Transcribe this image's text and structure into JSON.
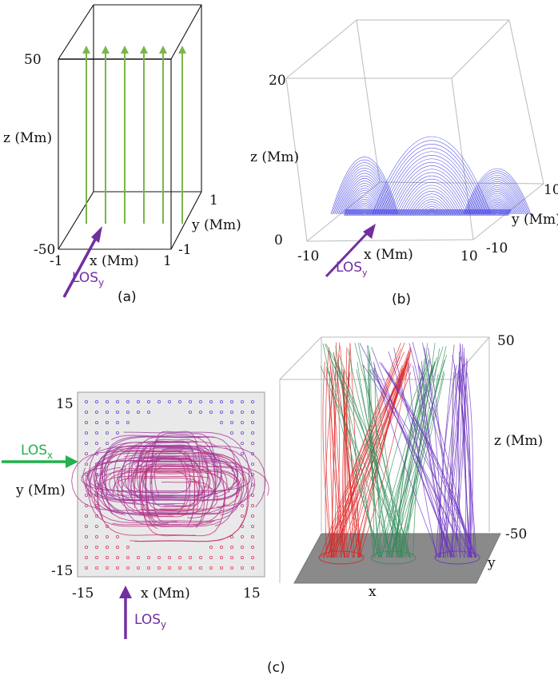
{
  "panel_a": {
    "z_top": "50",
    "z_bottom": "-50",
    "z_label": "z (Mm)",
    "x_left": "-1",
    "x_right": "1",
    "x_label": "x (Mm)",
    "y_back": "1",
    "y_front": "-1",
    "y_label": "y (Mm)",
    "los": "LOS",
    "los_sub": "y",
    "caption": "(a)",
    "colors": {
      "field": "#7ab648",
      "los": "#7030a0"
    }
  },
  "panel_b": {
    "z_top": "20",
    "z_bottom": "0",
    "z_label": "z (Mm)",
    "x_left": "-10",
    "x_right": "10",
    "x_label": "x (Mm)",
    "y_back": "10",
    "y_front": "-10",
    "y_label": "y (Mm)",
    "los": "LOS",
    "los_sub": "y",
    "caption": "(b)",
    "colors": {
      "field": "#3a3ae0",
      "los": "#7030a0"
    }
  },
  "panel_c": {
    "left": {
      "y_top": "15",
      "y_bottom": "-15",
      "y_label": "y (Mm)",
      "x_left": "-15",
      "x_right": "15",
      "x_label": "x (Mm)",
      "los_x": "LOS",
      "los_x_sub": "x",
      "los_y": "LOS",
      "los_y_sub": "y"
    },
    "right": {
      "z_top": "50",
      "z_bottom": "-50",
      "z_label": "z (Mm)",
      "x_label": "x",
      "y_label": "y"
    },
    "caption": "(c)",
    "colors": {
      "red": "#e02020",
      "green": "#2e8b57",
      "purple": "#6a2fbf",
      "los_x": "#22b14c",
      "los_y": "#7030a0",
      "floor": "#8a8a8a"
    }
  }
}
